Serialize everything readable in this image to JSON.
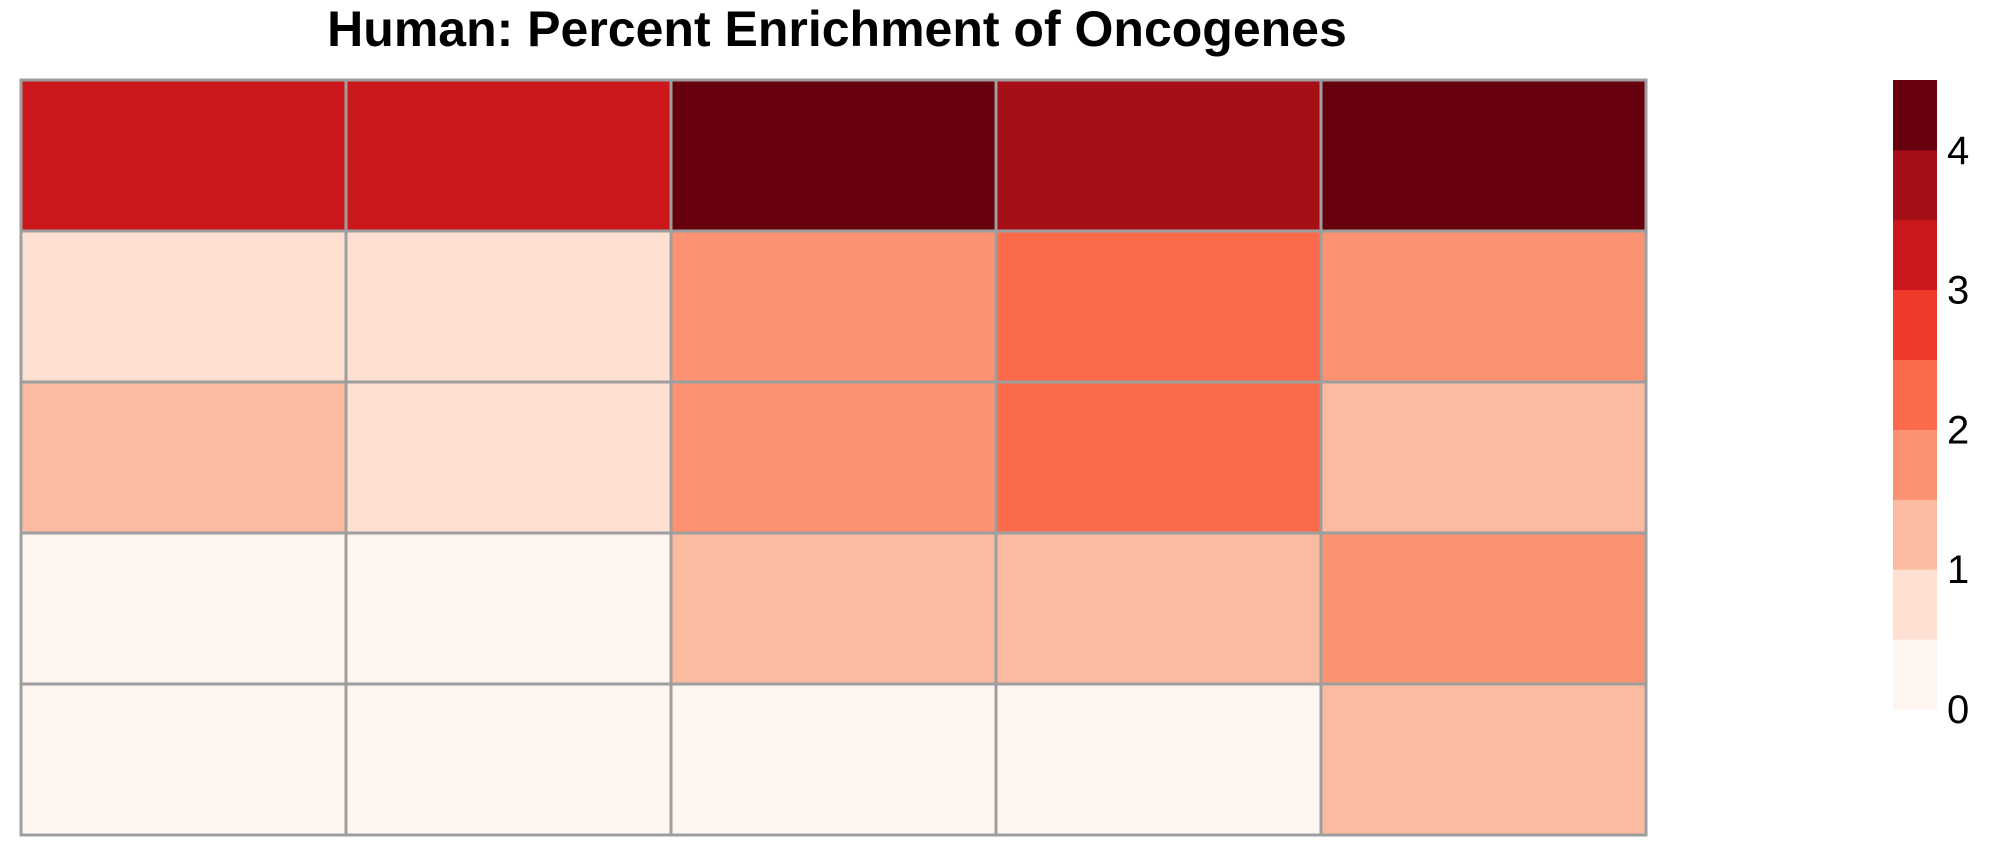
{
  "chart_data": {
    "type": "heatmap",
    "title": "Human: Percent Enrichment of Oncogenes",
    "rows": 5,
    "columns": 5,
    "values": [
      [
        3.25,
        3.25,
        4.25,
        3.75,
        4.25
      ],
      [
        0.75,
        0.75,
        1.75,
        2.25,
        1.75
      ],
      [
        1.25,
        0.75,
        1.75,
        2.25,
        1.25
      ],
      [
        0.25,
        0.25,
        1.25,
        1.25,
        1.75
      ],
      [
        0.25,
        0.25,
        0.25,
        0.25,
        1.25
      ]
    ],
    "color_scale": {
      "breaks": [
        0,
        0.5,
        1,
        1.5,
        2,
        2.5,
        3,
        3.5,
        4,
        4.5
      ],
      "colors": [
        "#FFF5F0",
        "#FEE0D2",
        "#FCBBA1",
        "#FC9272",
        "#FB6A4A",
        "#EF3B2C",
        "#CB181D",
        "#A50F15",
        "#67000D"
      ]
    },
    "legend": {
      "position": "right",
      "tick_labels": [
        "0",
        "1",
        "2",
        "3",
        "4"
      ],
      "tick_values": [
        0,
        1,
        2,
        3,
        4
      ]
    },
    "grid_color": "#9E9E9E"
  }
}
